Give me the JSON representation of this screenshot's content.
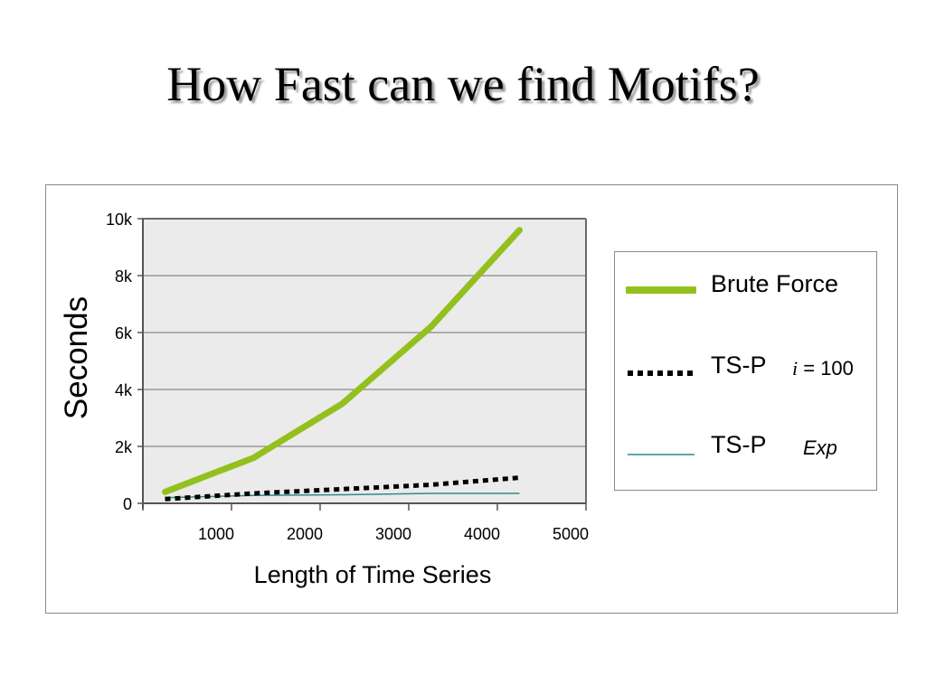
{
  "slide": {
    "title": "How Fast can we find Motifs?"
  },
  "colors": {
    "plot_background": "#ebebeb",
    "gridline": "#6f6f6f",
    "brute_force": "#93c01f",
    "ts_p_i100": "#000000",
    "ts_p_exp": "#2c8c8c"
  },
  "legend": {
    "items": [
      {
        "label": "Brute Force",
        "sub_italic": "",
        "sub_rest": ""
      },
      {
        "label": "TS-P",
        "sub_italic": "i",
        "sub_rest": " = 100"
      },
      {
        "label": "TS-P",
        "sub_italic": "Exp",
        "sub_rest": ""
      }
    ]
  },
  "chart_data": {
    "type": "line",
    "xlabel": "Length of Time Series",
    "ylabel": "Seconds",
    "xlim": [
      0,
      5000
    ],
    "ylim": [
      0,
      10000
    ],
    "x_ticks": [
      1000,
      2000,
      3000,
      4000,
      5000
    ],
    "x_tick_labels": [
      "1000",
      "2000",
      "3000",
      "4000",
      "5000"
    ],
    "y_ticks": [
      0,
      2000,
      4000,
      6000,
      8000,
      10000
    ],
    "y_tick_labels": [
      "0",
      "2k",
      "4k",
      "6k",
      "8k",
      "10k"
    ],
    "grid": "horizontal",
    "legend_position": "right",
    "x": [
      250,
      1250,
      2250,
      3250,
      4250
    ],
    "series": [
      {
        "name": "Brute Force",
        "style": "solid-thick",
        "values": [
          400,
          1600,
          3500,
          6200,
          9600
        ]
      },
      {
        "name": "TS-P i = 100",
        "style": "dotted",
        "values": [
          150,
          350,
          500,
          650,
          900
        ]
      },
      {
        "name": "TS-P Exp",
        "style": "solid-thin",
        "values": [
          200,
          280,
          300,
          350,
          350
        ]
      }
    ]
  }
}
